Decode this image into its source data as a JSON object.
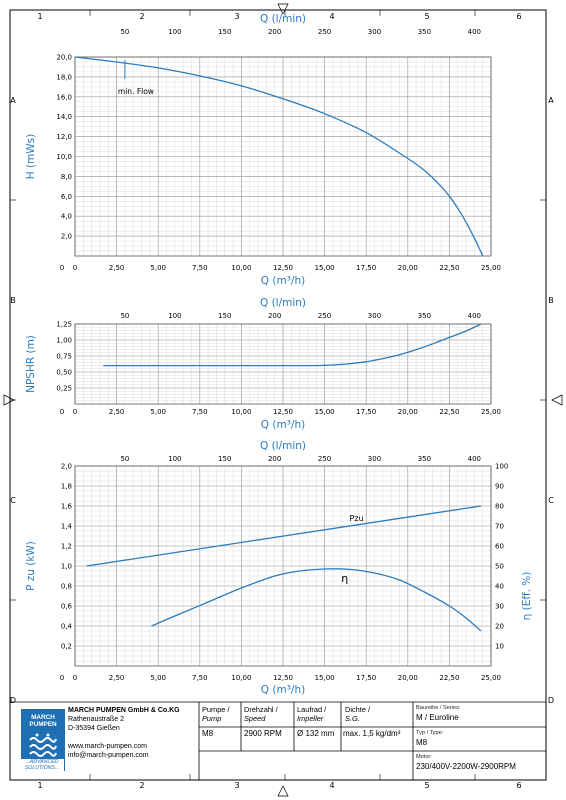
{
  "colors": {
    "curve": "#2b7bbf",
    "axis_label": "#2b7bbf",
    "grid_major": "#9a9a9a",
    "grid_minor": "#d0d0d0",
    "logo": "#1f6fb5"
  },
  "frame": {
    "columns": [
      "1",
      "2",
      "3",
      "4",
      "5",
      "6"
    ],
    "rows": [
      "A",
      "B",
      "C",
      "D"
    ]
  },
  "chart_data": [
    {
      "type": "line",
      "id": "head",
      "xlabel": "Q (m³/h)",
      "x2label": "Q (l/min)",
      "ylabel": "H (mWs)",
      "xlim": [
        0,
        25
      ],
      "ylim": [
        0,
        20
      ],
      "x2lim": [
        0,
        416.7
      ],
      "x_ticks": [
        "0",
        "2,50",
        "5,00",
        "7,50",
        "10,00",
        "12,50",
        "15,00",
        "17,50",
        "20,00",
        "22,50",
        "25,00"
      ],
      "x2_ticks": [
        "50",
        "100",
        "150",
        "200",
        "250",
        "300",
        "350",
        "400"
      ],
      "y_ticks": [
        "2,0",
        "4,0",
        "6,0",
        "8,0",
        "10,0",
        "12,0",
        "14,0",
        "16,0",
        "18,0",
        "20,0"
      ],
      "annotation": "min. Flow",
      "annotation_x": 3,
      "series": [
        {
          "x": [
            0,
            2.5,
            5,
            7.5,
            10,
            12.5,
            15,
            17.5,
            20,
            21,
            22,
            22.5,
            23,
            23.5,
            24,
            24.2,
            24.4,
            24.5
          ],
          "y": [
            20.0,
            19.5,
            18.9,
            18.1,
            17.1,
            15.8,
            14.3,
            12.4,
            9.8,
            8.6,
            7.0,
            6.0,
            4.8,
            3.4,
            1.8,
            1.1,
            0.4,
            0.0
          ]
        }
      ],
      "grid": true
    },
    {
      "type": "line",
      "id": "npshr",
      "xlabel": "Q (m³/h)",
      "x2label": "Q (l/min)",
      "ylabel": "NPSHR (m)",
      "xlim": [
        0,
        25
      ],
      "ylim": [
        0,
        1.25
      ],
      "x2lim": [
        0,
        416.7
      ],
      "x_ticks": [
        "0",
        "2,50",
        "5,00",
        "7,50",
        "10,00",
        "12,50",
        "15,00",
        "17,50",
        "20,00",
        "22,50",
        "25,00"
      ],
      "x2_ticks": [
        "50",
        "100",
        "150",
        "200",
        "250",
        "300",
        "350",
        "400"
      ],
      "y_ticks": [
        "0,25",
        "0,50",
        "0,75",
        "1,00",
        "1,25"
      ],
      "series": [
        {
          "x": [
            1.7,
            5,
            10,
            14,
            15.5,
            16.5,
            17.5,
            18.5,
            19.5,
            20.5,
            21.5,
            22.5,
            23.5,
            24.4
          ],
          "y": [
            0.6,
            0.6,
            0.6,
            0.6,
            0.61,
            0.63,
            0.66,
            0.71,
            0.77,
            0.85,
            0.94,
            1.04,
            1.14,
            1.25
          ]
        }
      ],
      "grid": true
    },
    {
      "type": "line",
      "id": "power-efficiency",
      "xlabel": "Q (m³/h)",
      "x2label": "Q (l/min)",
      "ylabel": "P zu (kW)",
      "y2label": "η (Eff. %)",
      "xlim": [
        0,
        25
      ],
      "ylim": [
        0,
        2.0
      ],
      "y2lim": [
        0,
        100
      ],
      "x2lim": [
        0,
        416.7
      ],
      "x_ticks": [
        "0",
        "2,50",
        "5,00",
        "7,50",
        "10,00",
        "12,50",
        "15,00",
        "17,50",
        "20,00",
        "22,50",
        "25,00"
      ],
      "x2_ticks": [
        "50",
        "100",
        "150",
        "200",
        "250",
        "300",
        "350",
        "400"
      ],
      "y_ticks": [
        "0,2",
        "0,4",
        "0,6",
        "0,8",
        "1,0",
        "1,2",
        "1,4",
        "1,6",
        "1,8",
        "2,0"
      ],
      "y2_ticks": [
        "10",
        "20",
        "30",
        "40",
        "50",
        "60",
        "70",
        "80",
        "90",
        "100"
      ],
      "series": [
        {
          "name": "Pzu",
          "axis": "left",
          "x": [
            0.7,
            24.4
          ],
          "y": [
            1.0,
            1.6
          ],
          "label_x": 16.5,
          "label_y": 1.45
        },
        {
          "name": "η",
          "axis": "right",
          "x": [
            4.6,
            6,
            8,
            10,
            12,
            13.5,
            15,
            16.5,
            18,
            19.5,
            21,
            22.5,
            23.5,
            24.4
          ],
          "y": [
            20,
            25,
            32,
            39,
            45,
            47.5,
            48.5,
            48.3,
            46.5,
            43,
            37,
            30,
            24,
            17.5
          ],
          "label_x": 16.0,
          "label_y": 42
        }
      ],
      "grid": true
    }
  ],
  "title_block": {
    "company": "MARCH PUMPEN GmbH & Co.KG",
    "street": "Rathenaustraße 2",
    "city": "D-35394 Gießen",
    "web": "www.march-pumpen.com",
    "email": "info@march-pumpen.com",
    "logo_line1": "MARCH",
    "logo_line2": "PUMPEN",
    "logo_tagline": "...ADVANCED SOLUTIONS...",
    "pump_header_1": "Pumpe /",
    "pump_header_2": "Pump",
    "pump_value": "M8",
    "speed_header_1": "Drehzahl /",
    "speed_header_2": "Speed",
    "speed_value": "2900 RPM",
    "impeller_header_1": "Laufrad /",
    "impeller_header_2": "Impeller",
    "impeller_value": "Ø 132 mm",
    "density_header_1": "Dichte /",
    "density_header_2": "S.G.",
    "density_value": "max. 1,5 kg/dm³",
    "series_label": "Baureihe / Series:",
    "series_value": "M / Euroline",
    "type_label": "Typ / Type:",
    "type_value": "M8",
    "motor_label": "Motor:",
    "motor_value": "230/400V-2200W-2900RPM"
  }
}
